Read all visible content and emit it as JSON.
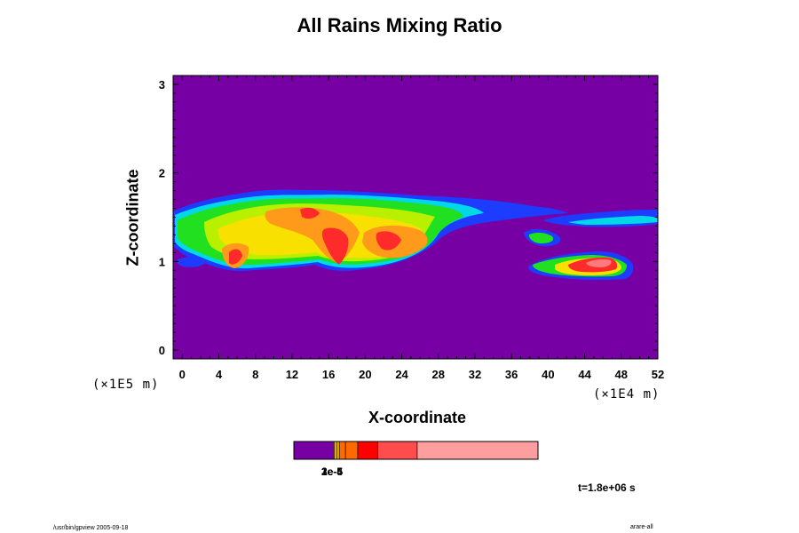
{
  "chart_data": {
    "type": "heatmap",
    "title": "All Rains Mixing Ratio",
    "xlabel": "X-coordinate",
    "ylabel": "Z-coordinate",
    "x_unit": "(×1E4 m)",
    "y_unit": "(×1E5 m)",
    "x_ticks": [
      0,
      4,
      8,
      12,
      16,
      20,
      24,
      28,
      32,
      36,
      40,
      44,
      48,
      52
    ],
    "y_ticks": [
      0,
      1,
      2,
      3
    ],
    "xlim": [
      -1,
      52
    ],
    "ylim": [
      -0.1,
      3.1
    ],
    "grid": false,
    "background_color": "#7700a5",
    "colorbar_colors": [
      "#7700a5",
      "#e0b000",
      "#ff6a00",
      "#ff0000",
      "#ff4c4c",
      "#ff9e9e"
    ],
    "colorbar_tick_labels": [
      "1e-5",
      "2e-5",
      "3e-4"
    ],
    "annotations": {
      "time": "t=1.8e+06 s",
      "footer_left": "/usr/bin/gpview 2005-09-18",
      "footer_right": "arare-all"
    },
    "regions": [
      {
        "name": "main band",
        "x": [
          -1,
          52
        ],
        "z": [
          0.95,
          1.78
        ]
      },
      {
        "name": "right cloud",
        "x": [
          38,
          50
        ],
        "z": [
          0.8,
          1.15
        ]
      }
    ]
  }
}
